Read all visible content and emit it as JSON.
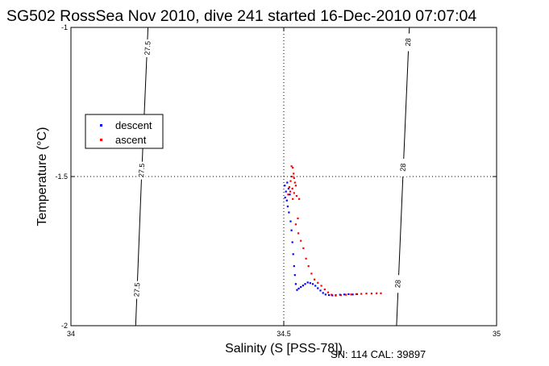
{
  "chart_data": {
    "type": "scatter",
    "title": "SG502 RossSea Nov 2010, dive 241 started 16-Dec-2010 07:07:04",
    "xlabel": "Salinity (S [PSS-78])",
    "ylabel": "Temperature (°C)",
    "xlim": [
      34,
      35
    ],
    "ylim": [
      -2,
      -1
    ],
    "x_ticks": [
      "34",
      "34.5",
      "35"
    ],
    "y_ticks": [
      "-1",
      "-1.5",
      "-2"
    ],
    "grid": "dotted lines at x=34.5 and y=-1.5",
    "legend_position": "upper-left",
    "footer": "SN: 114  CAL: 39897",
    "density_contours": [
      {
        "label": "27.5",
        "points": [
          [
            34.181,
            -1.0
          ],
          [
            34.166,
            -1.5
          ],
          [
            34.152,
            -2.0
          ]
        ],
        "label_positions": [
          [
            34.18,
            -1.07
          ],
          [
            34.166,
            -1.48
          ],
          [
            34.155,
            -1.88
          ]
        ]
      },
      {
        "label": "28",
        "points": [
          [
            34.795,
            -1.0
          ],
          [
            34.78,
            -1.5
          ],
          [
            34.765,
            -2.0
          ]
        ],
        "label_positions": [
          [
            34.792,
            -1.05
          ],
          [
            34.78,
            -1.47
          ],
          [
            34.768,
            -1.86
          ]
        ]
      }
    ],
    "series": [
      {
        "name": "descent",
        "color": "#0000ff",
        "points": [
          [
            34.502,
            -1.53
          ],
          [
            34.505,
            -1.55
          ],
          [
            34.508,
            -1.52
          ],
          [
            34.503,
            -1.57
          ],
          [
            34.507,
            -1.58
          ],
          [
            34.511,
            -1.54
          ],
          [
            34.514,
            -1.56
          ],
          [
            34.509,
            -1.6
          ],
          [
            34.512,
            -1.62
          ],
          [
            34.516,
            -1.65
          ],
          [
            34.518,
            -1.68
          ],
          [
            34.52,
            -1.72
          ],
          [
            34.522,
            -1.76
          ],
          [
            34.524,
            -1.8
          ],
          [
            34.526,
            -1.83
          ],
          [
            34.528,
            -1.86
          ],
          [
            34.531,
            -1.88
          ],
          [
            34.535,
            -1.875
          ],
          [
            34.54,
            -1.87
          ],
          [
            34.545,
            -1.865
          ],
          [
            34.55,
            -1.86
          ],
          [
            34.556,
            -1.855
          ],
          [
            34.562,
            -1.857
          ],
          [
            34.568,
            -1.86
          ],
          [
            34.574,
            -1.866
          ],
          [
            34.58,
            -1.874
          ],
          [
            34.586,
            -1.882
          ],
          [
            34.592,
            -1.89
          ],
          [
            34.598,
            -1.895
          ],
          [
            34.606,
            -1.897
          ],
          [
            34.614,
            -1.898
          ],
          [
            34.622,
            -1.897
          ],
          [
            34.632,
            -1.896
          ],
          [
            34.642,
            -1.895
          ],
          [
            34.652,
            -1.894
          ],
          [
            34.662,
            -1.895
          ],
          [
            34.672,
            -1.894
          ]
        ]
      },
      {
        "name": "ascent",
        "color": "#ff0000",
        "points": [
          [
            34.518,
            -1.465
          ],
          [
            34.521,
            -1.47
          ],
          [
            34.523,
            -1.49
          ],
          [
            34.519,
            -1.5
          ],
          [
            34.524,
            -1.505
          ],
          [
            34.516,
            -1.515
          ],
          [
            34.526,
            -1.52
          ],
          [
            34.513,
            -1.535
          ],
          [
            34.52,
            -1.54
          ],
          [
            34.528,
            -1.53
          ],
          [
            34.515,
            -1.55
          ],
          [
            34.524,
            -1.555
          ],
          [
            34.51,
            -1.56
          ],
          [
            34.53,
            -1.565
          ],
          [
            34.521,
            -1.575
          ],
          [
            34.536,
            -1.575
          ],
          [
            34.533,
            -1.64
          ],
          [
            34.528,
            -1.66
          ],
          [
            34.534,
            -1.69
          ],
          [
            34.54,
            -1.715
          ],
          [
            34.546,
            -1.74
          ],
          [
            34.552,
            -1.775
          ],
          [
            34.558,
            -1.8
          ],
          [
            34.565,
            -1.825
          ],
          [
            34.572,
            -1.845
          ],
          [
            34.58,
            -1.856
          ],
          [
            34.588,
            -1.866
          ],
          [
            34.596,
            -1.878
          ],
          [
            34.604,
            -1.888
          ],
          [
            34.612,
            -1.896
          ],
          [
            34.622,
            -1.899
          ],
          [
            34.634,
            -1.897
          ],
          [
            34.646,
            -1.896
          ],
          [
            34.658,
            -1.895
          ],
          [
            34.67,
            -1.894
          ],
          [
            34.682,
            -1.893
          ],
          [
            34.694,
            -1.892
          ],
          [
            34.706,
            -1.892
          ],
          [
            34.718,
            -1.891
          ],
          [
            34.728,
            -1.891
          ]
        ]
      }
    ]
  }
}
